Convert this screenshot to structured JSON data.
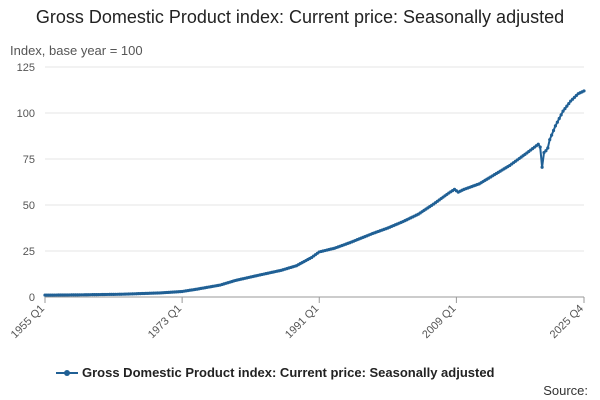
{
  "chart_data": {
    "type": "line",
    "title": "Gross Domestic Product index: Current price: Seasonally adjusted",
    "ylabel": "Index, base year = 100",
    "xlabel": "",
    "ylim": [
      0,
      125
    ],
    "yticks": [
      0,
      25,
      50,
      75,
      100,
      125
    ],
    "x_start": 1955.0,
    "x_end": 2025.75,
    "xticks": [
      {
        "label": "1955 Q1",
        "value": 1955.0
      },
      {
        "label": "1973 Q1",
        "value": 1973.0
      },
      {
        "label": "1991 Q1",
        "value": 1991.0
      },
      {
        "label": "2009 Q1",
        "value": 2009.0
      },
      {
        "label": "2025 Q4",
        "value": 2025.75
      }
    ],
    "grid": true,
    "legend_position": "bottom",
    "series": [
      {
        "name": "Gross Domestic Product index: Current price: Seasonally adjusted",
        "color": "#206095",
        "anchors": [
          [
            1955.0,
            1.0
          ],
          [
            1960.0,
            1.2
          ],
          [
            1965.0,
            1.5
          ],
          [
            1970.0,
            2.2
          ],
          [
            1973.0,
            3.0
          ],
          [
            1975.0,
            4.3
          ],
          [
            1978.0,
            6.5
          ],
          [
            1980.0,
            9.0
          ],
          [
            1983.0,
            11.8
          ],
          [
            1986.0,
            14.5
          ],
          [
            1988.0,
            17.0
          ],
          [
            1990.0,
            21.5
          ],
          [
            1991.0,
            24.5
          ],
          [
            1993.0,
            26.5
          ],
          [
            1995.0,
            29.5
          ],
          [
            1998.0,
            34.5
          ],
          [
            2000.0,
            37.5
          ],
          [
            2002.0,
            41.0
          ],
          [
            2004.0,
            45.0
          ],
          [
            2006.0,
            50.5
          ],
          [
            2008.0,
            56.5
          ],
          [
            2008.75,
            58.5
          ],
          [
            2009.25,
            57.0
          ],
          [
            2010.0,
            58.5
          ],
          [
            2012.0,
            61.5
          ],
          [
            2014.0,
            66.5
          ],
          [
            2016.0,
            71.5
          ],
          [
            2018.0,
            77.5
          ],
          [
            2019.75,
            83.0
          ],
          [
            2020.0,
            81.5
          ],
          [
            2020.25,
            70.5
          ],
          [
            2020.5,
            78.5
          ],
          [
            2020.75,
            79.5
          ],
          [
            2021.0,
            81.0
          ],
          [
            2021.25,
            85.5
          ],
          [
            2022.0,
            93.0
          ],
          [
            2023.0,
            101.0
          ],
          [
            2024.0,
            106.5
          ],
          [
            2025.0,
            110.5
          ],
          [
            2025.75,
            112.0
          ]
        ]
      }
    ],
    "source_label": "Source:"
  },
  "legend": {
    "label": "Gross Domestic Product index: Current price: Seasonally adjusted"
  },
  "source": {
    "label": "Source:"
  }
}
